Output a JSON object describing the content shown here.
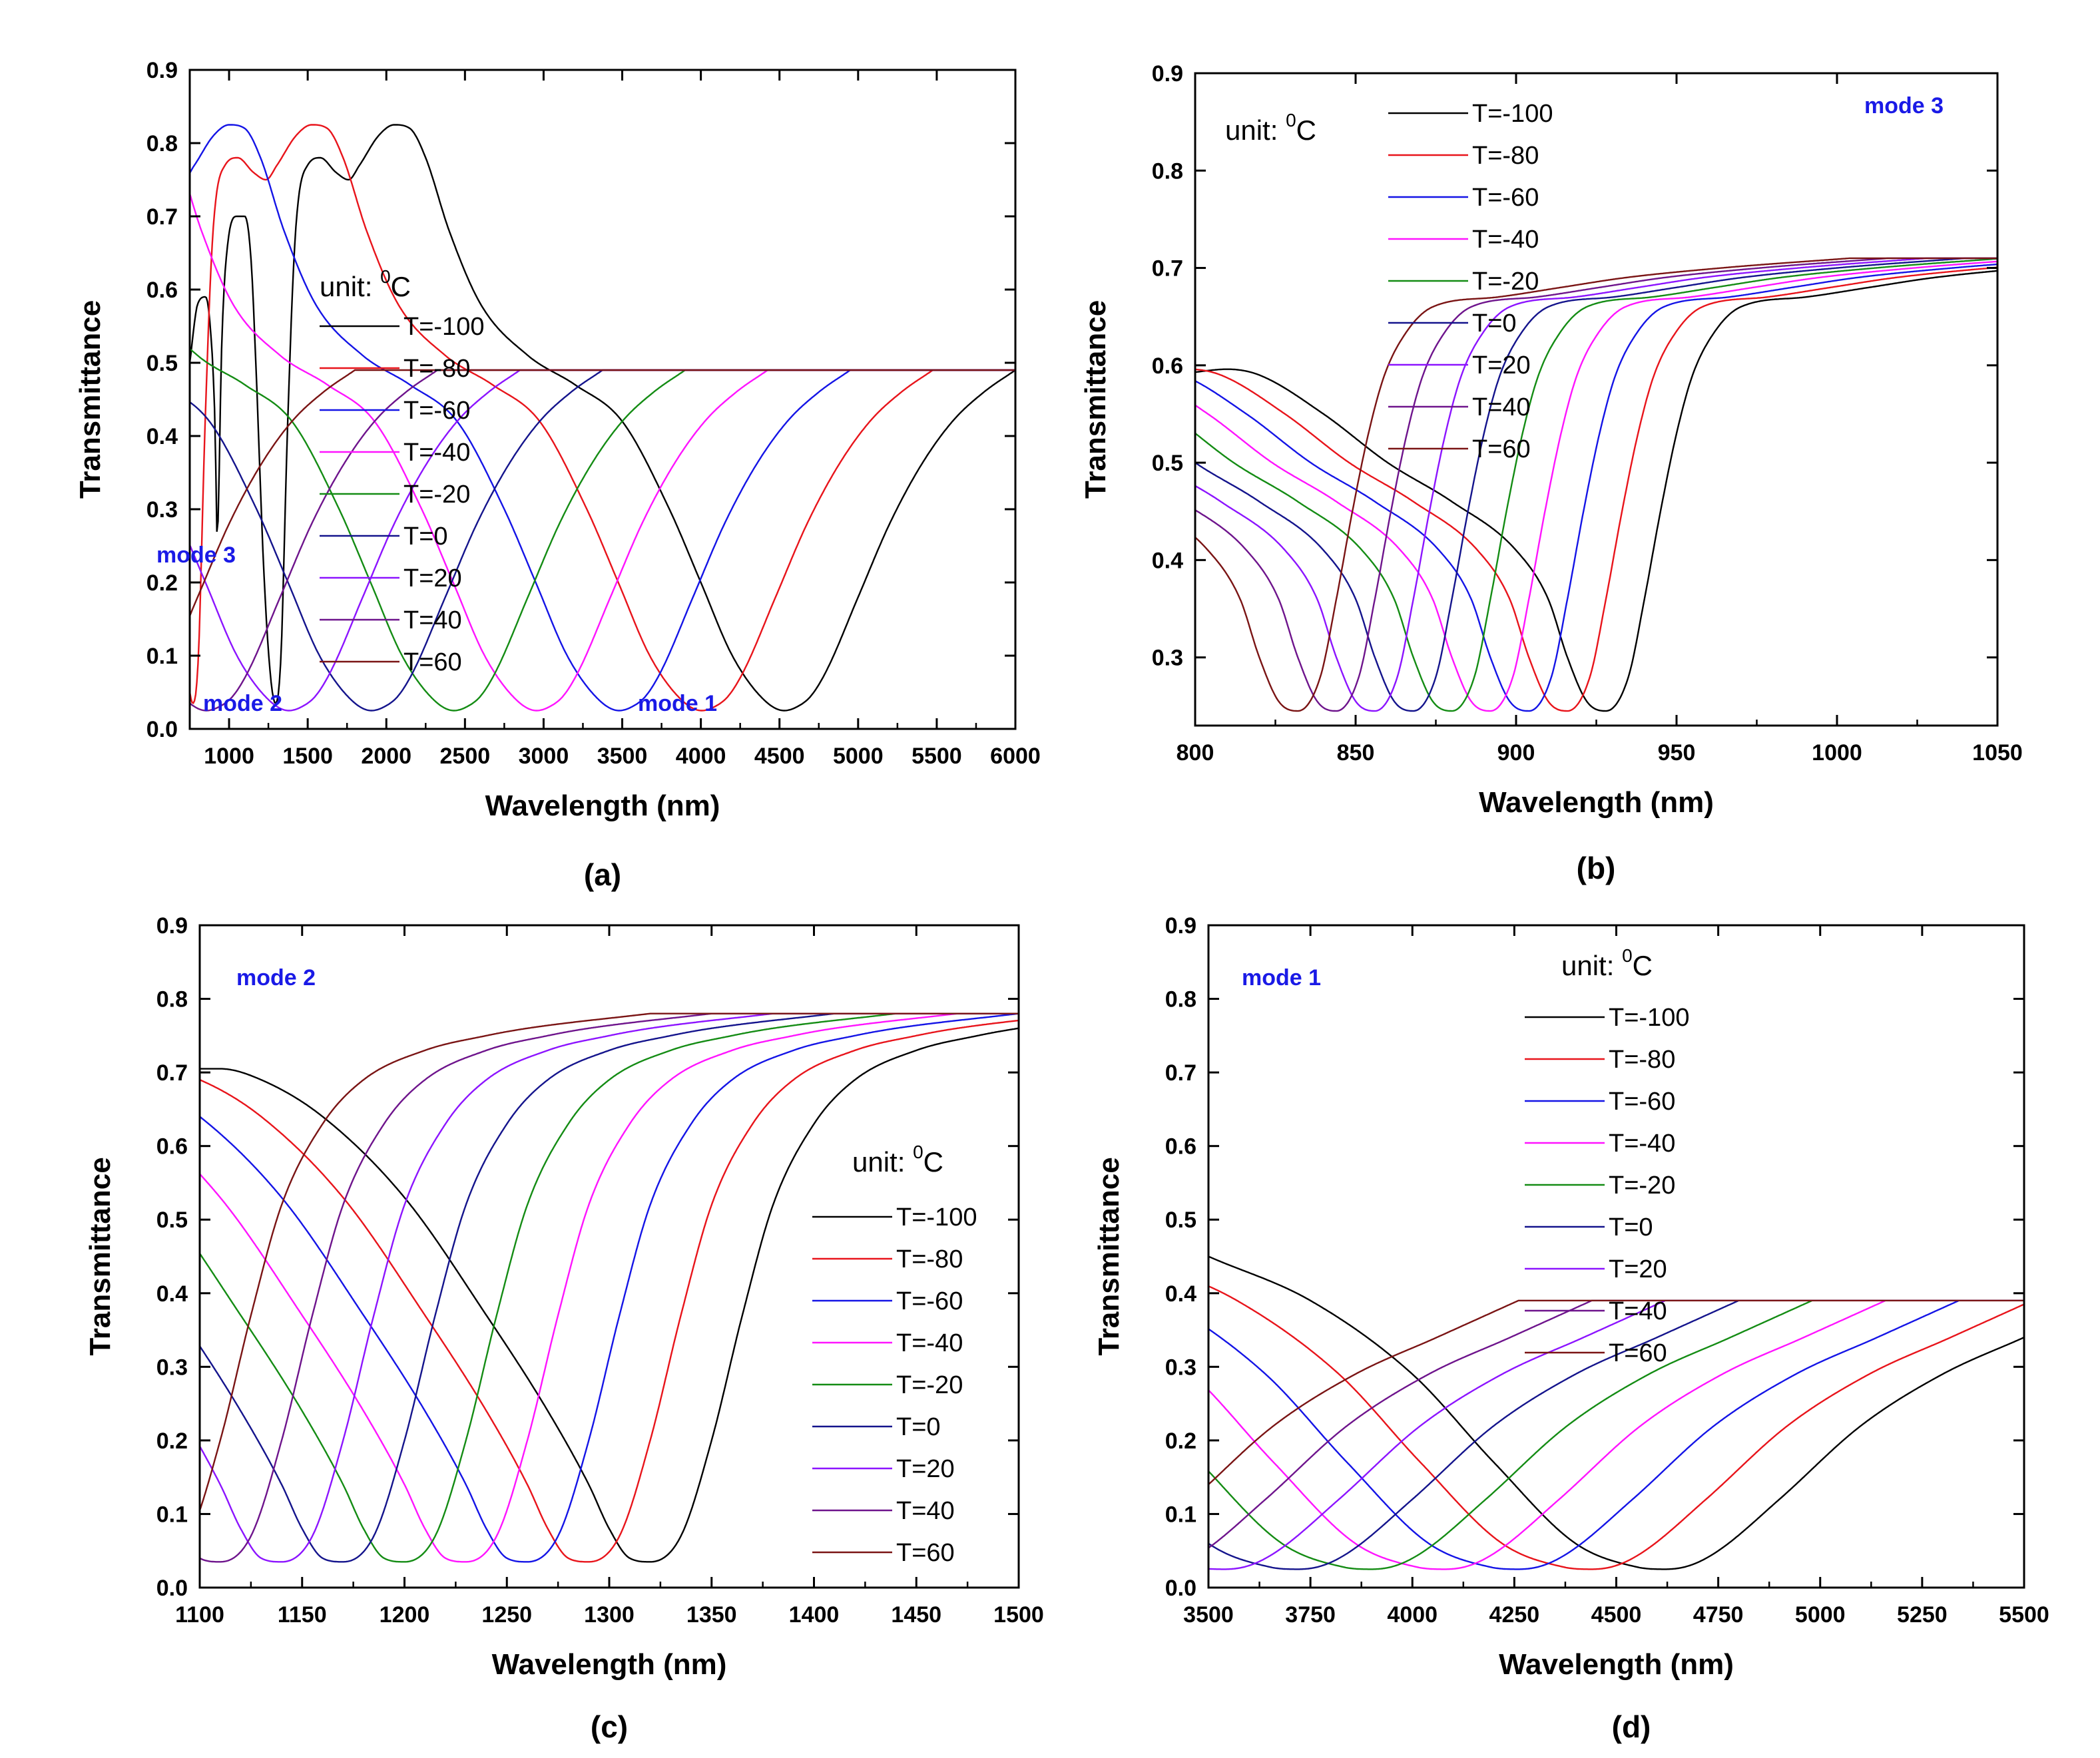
{
  "figure": {
    "panel_labels": [
      "(a)",
      "(b)",
      "(c)",
      "(d)"
    ],
    "colors": [
      "#000000",
      "#e8141b",
      "#1414e6",
      "#ff14ff",
      "#148c14",
      "#14148c",
      "#8c14ff",
      "#6e148c",
      "#7a1414"
    ],
    "mode_color": "#1a1ae6"
  },
  "chart_data": [
    {
      "type": "line",
      "panel": "(a)",
      "xlabel": "Wavelength (nm)",
      "ylabel": "Transmittance",
      "xlim": [
        750,
        6000
      ],
      "ylim": [
        0.0,
        0.9
      ],
      "xticks": [
        1000,
        1500,
        2000,
        2500,
        3000,
        3500,
        4000,
        4500,
        5000,
        5500,
        6000
      ],
      "xtick_labels": [
        "1000",
        "1500",
        "2000",
        "2500",
        "3000",
        "3500",
        "4000",
        "4500",
        "5000",
        "5500",
        "6000"
      ],
      "yticks": [
        0.0,
        0.1,
        0.2,
        0.3,
        0.4,
        0.5,
        0.6,
        0.7,
        0.8,
        0.9
      ],
      "ytick_labels": [
        "0.0",
        "0.1",
        "0.2",
        "0.3",
        "0.4",
        "0.5",
        "0.6",
        "0.7",
        "0.8",
        "0.9"
      ],
      "legend_title_main": "unit: ",
      "legend_title_sup": "0",
      "legend_title_unit": "C",
      "legend": [
        "T=-100",
        "T=-80",
        "T=-60",
        "T=-40",
        "T=-20",
        "T=0",
        "T=20",
        "T=40",
        "T=60"
      ],
      "legend_position": "center-left",
      "annotations": [
        "mode 3",
        "mode 2",
        "mode 1"
      ],
      "temperatures": [
        -100,
        -80,
        -60,
        -40,
        -20,
        0,
        20,
        40,
        60
      ],
      "shift_per_step": -10,
      "base_curve": {
        "x": [
          750,
          800,
          850,
          880,
          910,
          925,
          935,
          950,
          990,
          1050,
          1100,
          1140,
          1170,
          1220,
          1260,
          1295,
          1330,
          1370,
          1420,
          1500,
          1580,
          1680,
          1760,
          1830,
          1950,
          2050,
          2150,
          2250,
          2400,
          2600,
          2900,
          3200,
          3500,
          3800,
          4000,
          4200,
          4400,
          4530,
          4610,
          4700,
          4800,
          5000,
          5200,
          5400,
          5600,
          5800,
          6000
        ],
        "y": [
          0.5,
          0.58,
          0.59,
          0.55,
          0.42,
          0.26,
          0.33,
          0.5,
          0.66,
          0.7,
          0.7,
          0.64,
          0.5,
          0.22,
          0.08,
          0.035,
          0.1,
          0.4,
          0.67,
          0.77,
          0.78,
          0.76,
          0.75,
          0.77,
          0.81,
          0.825,
          0.82,
          0.78,
          0.68,
          0.58,
          0.51,
          0.47,
          0.42,
          0.3,
          0.2,
          0.1,
          0.04,
          0.025,
          0.03,
          0.045,
          0.08,
          0.18,
          0.28,
          0.36,
          0.42,
          0.46,
          0.49
        ]
      }
    },
    {
      "type": "line",
      "panel": "(b)",
      "xlabel": "Wavelength (nm)",
      "ylabel": "Transmittance",
      "xlim": [
        800,
        1050
      ],
      "ylim": [
        0.23,
        0.9
      ],
      "xticks": [
        800,
        850,
        900,
        950,
        1000,
        1050
      ],
      "xtick_labels": [
        "800",
        "850",
        "900",
        "950",
        "1000",
        "1050"
      ],
      "yticks": [
        0.3,
        0.4,
        0.5,
        0.6,
        0.7,
        0.8,
        0.9
      ],
      "ytick_labels": [
        "0.3",
        "0.4",
        "0.5",
        "0.6",
        "0.7",
        "0.8",
        "0.9"
      ],
      "legend_title_main": "unit: ",
      "legend_title_sup": "0",
      "legend_title_unit": "C",
      "legend": [
        "T=-100",
        "T=-80",
        "T=-60",
        "T=-40",
        "T=-20",
        "T=0",
        "T=20",
        "T=40",
        "T=60"
      ],
      "legend_position": "top-center",
      "annotations": [
        "mode 3"
      ],
      "temperatures": [
        -100,
        -80,
        -60,
        -40,
        -20,
        0,
        20,
        40,
        60
      ],
      "shift_per_step": -4.8,
      "base_curve": {
        "x": [
          760,
          780,
          800,
          810,
          820,
          840,
          860,
          880,
          900,
          910,
          916,
          922,
          928,
          935,
          940,
          945,
          950,
          955,
          962,
          970,
          990,
          1010,
          1030,
          1060,
          1100
        ],
        "y": [
          0.57,
          0.585,
          0.593,
          0.596,
          0.59,
          0.55,
          0.5,
          0.46,
          0.41,
          0.36,
          0.3,
          0.255,
          0.245,
          0.28,
          0.36,
          0.45,
          0.53,
          0.59,
          0.635,
          0.66,
          0.67,
          0.68,
          0.69,
          0.7,
          0.71
        ]
      }
    },
    {
      "type": "line",
      "panel": "(c)",
      "xlabel": "Wavelength (nm)",
      "ylabel": "Transmittance",
      "xlim": [
        1100,
        1500
      ],
      "ylim": [
        0.0,
        0.9
      ],
      "xticks": [
        1100,
        1150,
        1200,
        1250,
        1300,
        1350,
        1400,
        1450,
        1500
      ],
      "xtick_labels": [
        "1100",
        "1150",
        "1200",
        "1250",
        "1300",
        "1350",
        "1400",
        "1450",
        "1500"
      ],
      "yticks": [
        0.0,
        0.1,
        0.2,
        0.3,
        0.4,
        0.5,
        0.6,
        0.7,
        0.8,
        0.9
      ],
      "ytick_labels": [
        "0.0",
        "0.1",
        "0.2",
        "0.3",
        "0.4",
        "0.5",
        "0.6",
        "0.7",
        "0.8",
        "0.9"
      ],
      "legend_title_main": "unit: ",
      "legend_title_sup": "0",
      "legend_title_unit": "C",
      "legend": [
        "T=-100",
        "T=-80",
        "T=-60",
        "T=-40",
        "T=-20",
        "T=0",
        "T=20",
        "T=40",
        "T=60"
      ],
      "legend_position": "right",
      "annotations": [
        "mode 2"
      ],
      "temperatures": [
        -100,
        -80,
        -60,
        -40,
        -20,
        0,
        20,
        40,
        60
      ],
      "shift_per_step": -7.5,
      "base_curve": {
        "x": [
          1060,
          1080,
          1100,
          1110,
          1130,
          1160,
          1200,
          1240,
          1270,
          1290,
          1300,
          1310,
          1320,
          1335,
          1350,
          1365,
          1380,
          1400,
          1420,
          1450,
          1480,
          1500,
          1560
        ],
        "y": [
          0.62,
          0.69,
          0.705,
          0.705,
          0.69,
          0.64,
          0.53,
          0.37,
          0.24,
          0.14,
          0.08,
          0.04,
          0.035,
          0.07,
          0.2,
          0.37,
          0.52,
          0.63,
          0.69,
          0.73,
          0.75,
          0.76,
          0.78
        ]
      }
    },
    {
      "type": "line",
      "panel": "(d)",
      "xlabel": "Wavelength (nm)",
      "ylabel": "Transmittance",
      "xlim": [
        3500,
        5500
      ],
      "ylim": [
        0.0,
        0.9
      ],
      "xticks": [
        3500,
        3750,
        4000,
        4250,
        4500,
        4750,
        5000,
        5250,
        5500
      ],
      "xtick_labels": [
        "3500",
        "3750",
        "4000",
        "4250",
        "4500",
        "4750",
        "5000",
        "5250",
        "5500"
      ],
      "yticks": [
        0.0,
        0.1,
        0.2,
        0.3,
        0.4,
        0.5,
        0.6,
        0.7,
        0.8,
        0.9
      ],
      "ytick_labels": [
        "0.0",
        "0.1",
        "0.2",
        "0.3",
        "0.4",
        "0.5",
        "0.6",
        "0.7",
        "0.8",
        "0.9"
      ],
      "legend_title_main": "unit: ",
      "legend_title_sup": "0",
      "legend_title_unit": "C",
      "legend": [
        "T=-100",
        "T=-80",
        "T=-60",
        "T=-40",
        "T=-20",
        "T=0",
        "T=20",
        "T=40",
        "T=60"
      ],
      "legend_position": "top-center",
      "annotations": [
        "mode 1"
      ],
      "temperatures": [
        -100,
        -80,
        -60,
        -40,
        -20,
        0,
        20,
        40,
        60
      ],
      "shift_per_step": -9,
      "base_curve": {
        "x": [
          3300,
          3500,
          3750,
          4000,
          4200,
          4400,
          4550,
          4620,
          4680,
          4750,
          4900,
          5100,
          5300,
          5500,
          5700
        ],
        "y": [
          0.5,
          0.45,
          0.39,
          0.29,
          0.17,
          0.06,
          0.028,
          0.025,
          0.03,
          0.05,
          0.12,
          0.22,
          0.29,
          0.34,
          0.39
        ]
      }
    }
  ]
}
